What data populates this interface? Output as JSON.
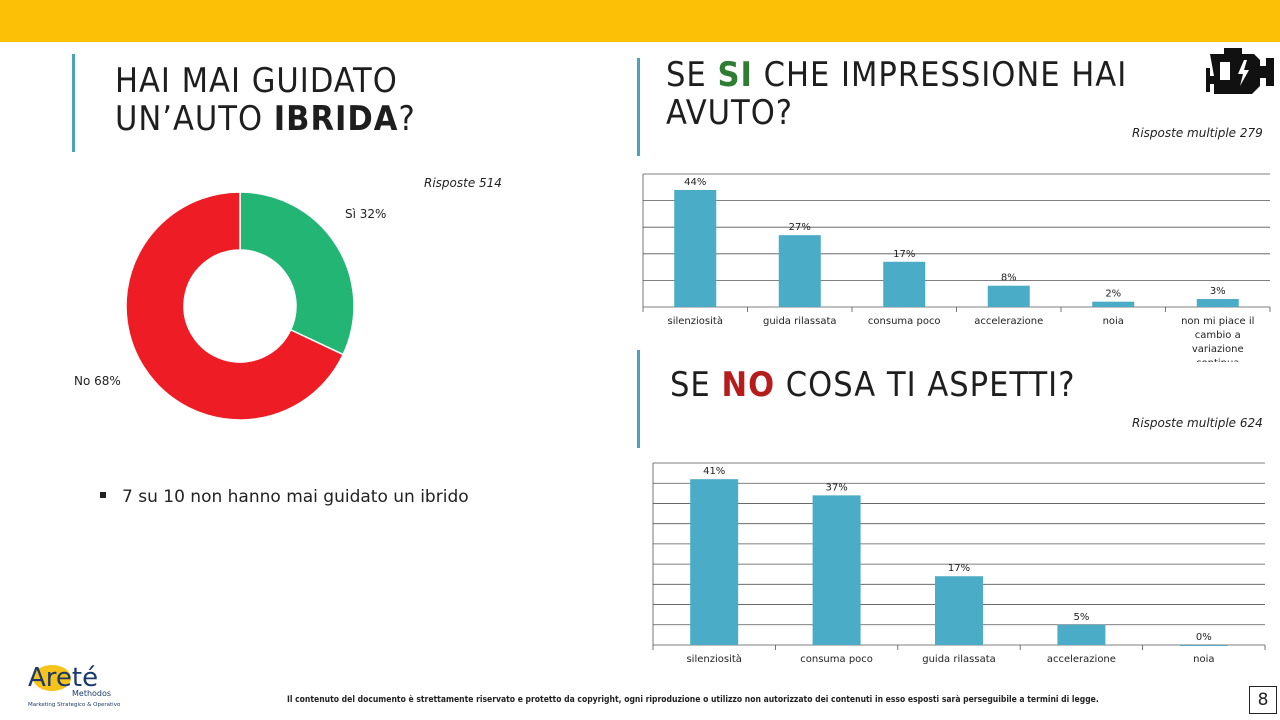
{
  "left": {
    "title_line1": "HAI MAI GUIDATO",
    "title_line2_pre": "UN’AUTO ",
    "title_line2_bold": "IBRIDA",
    "title_line2_post": "?",
    "responses": "Risposte 514",
    "bullet": "7 su 10 non hanno mai guidato un ibrido"
  },
  "right_top": {
    "title_pre": "SE ",
    "title_highlight": "SI",
    "title_post": " CHE IMPRESSIONE HAI",
    "title_line2": "AVUTO?",
    "responses": "Risposte multiple 279"
  },
  "right_bottom": {
    "title_pre": "SE ",
    "title_highlight": "NO",
    "title_post": " COSA TI ASPETTI?",
    "responses": "Risposte multiple 624"
  },
  "logo": {
    "name": "Areté",
    "sub1": "Methodos",
    "sub2": "Marketing Strategico & Operativo"
  },
  "footer": "Il contenuto del documento è strettamente riservato e protetto da copyright, ogni riproduzione o utilizzo non autorizzato dei contenuti in esso esposti sarà perseguibile a termini di legge.",
  "page_number": "8",
  "colors": {
    "accent": "#fcc107",
    "bar": "#4aacc6",
    "green": "#22b573",
    "red": "#ee1c25"
  },
  "chart_data": [
    {
      "type": "pie",
      "title": "Hai mai guidato un'auto ibrida?",
      "categories": [
        "Sì",
        "No"
      ],
      "values": [
        32,
        68
      ],
      "labels": [
        "Sì 32%",
        "No 68%"
      ],
      "colors": [
        "#22b573",
        "#ee1c25"
      ]
    },
    {
      "type": "bar",
      "title": "Se sì che impressione hai avuto?",
      "categories": [
        "silenziosità",
        "guida rilassata",
        "consuma poco",
        "accelerazione",
        "noia",
        "non mi piace il cambio a variazione continua"
      ],
      "values": [
        44,
        27,
        17,
        8,
        2,
        3
      ],
      "value_labels": [
        "44%",
        "27%",
        "17%",
        "8%",
        "2%",
        "3%"
      ],
      "ylim": [
        0,
        50
      ],
      "grid": true
    },
    {
      "type": "bar",
      "title": "Se no cosa ti aspetti?",
      "categories": [
        "silenziosità",
        "consuma poco",
        "guida rilassata",
        "accelerazione",
        "noia"
      ],
      "values": [
        41,
        37,
        17,
        5,
        0
      ],
      "value_labels": [
        "41%",
        "37%",
        "17%",
        "5%",
        "0%"
      ],
      "ylim": [
        0,
        45
      ],
      "grid": true
    }
  ]
}
